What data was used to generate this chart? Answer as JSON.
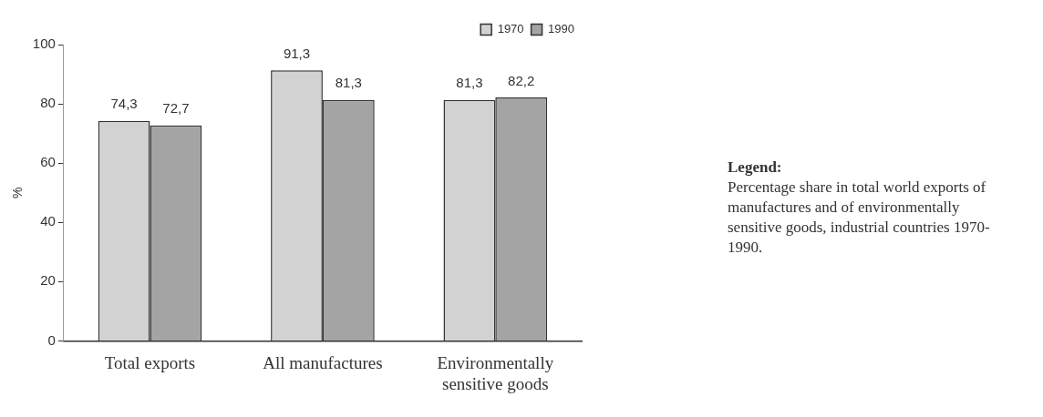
{
  "chart_data": {
    "type": "bar",
    "categories": [
      "Total exports",
      "All manufactures",
      "Environmentally sensitive goods"
    ],
    "series": [
      {
        "name": "1970",
        "color": "#d2d2d2",
        "values": [
          74.3,
          91.3,
          81.3
        ],
        "value_labels": [
          "74,3",
          "91,3",
          "81,3"
        ]
      },
      {
        "name": "1990",
        "color": "#a4a4a4",
        "values": [
          72.7,
          81.3,
          82.2
        ],
        "value_labels": [
          "72,7",
          "81,3",
          "82,2"
        ]
      }
    ],
    "ylabel": "%",
    "ylim": [
      0,
      100
    ],
    "yticks": [
      0,
      20,
      40,
      60,
      80,
      100
    ],
    "grid": false,
    "legend": "top right",
    "annotations": [
      "Legend:",
      "Percentage share in total world exports of manufactures and of environmentally sensitive goods, industrial countries 1970-1990."
    ]
  }
}
